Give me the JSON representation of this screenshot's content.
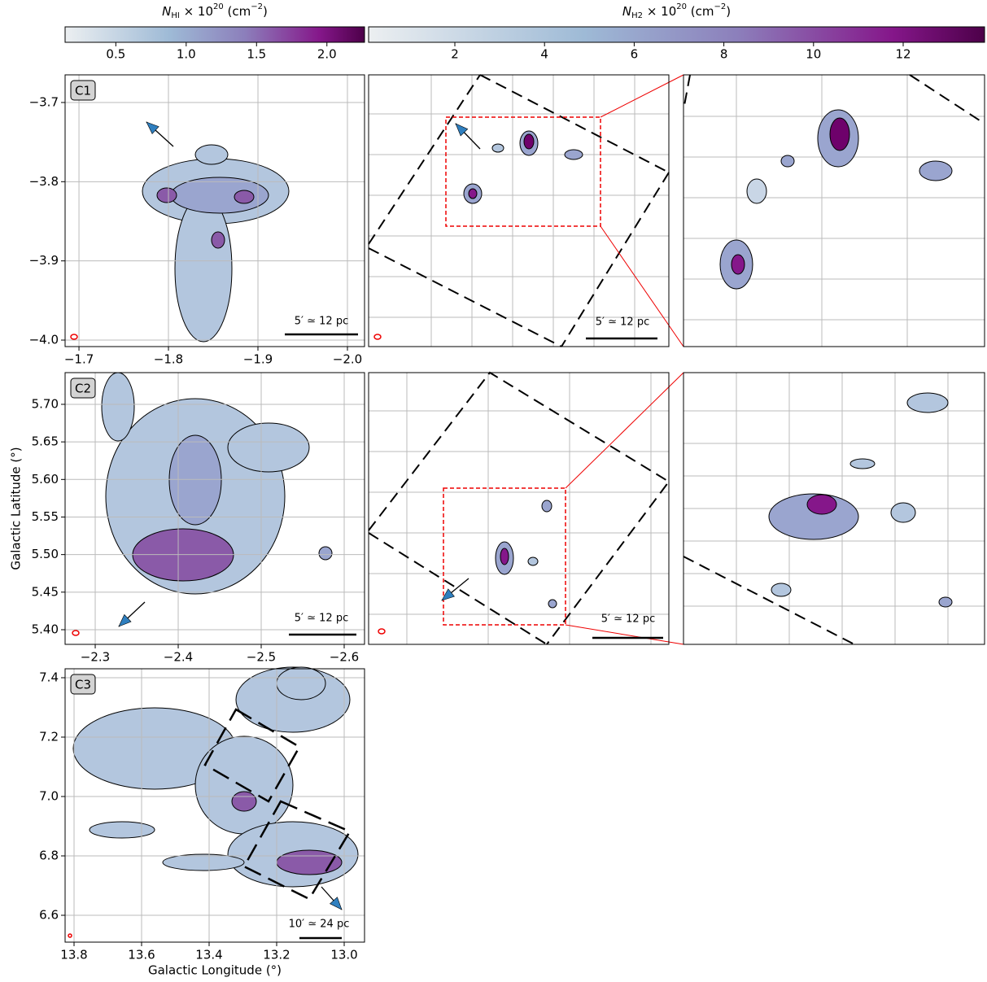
{
  "chart_data": [
    {
      "type": "colorbar",
      "label_parts": [
        "N",
        "HI",
        " × 10",
        "20",
        " (cm",
        "−2",
        ")"
      ],
      "xlim": [
        0.1395,
        2.2674
      ],
      "xticks": [
        0.5,
        {
          "value": 1,
          "label": "1.0"
        },
        1.5,
        {
          "value": 2,
          "label": "2.0"
        }
      ]
    },
    {
      "type": "colorbar",
      "label_parts": [
        "N",
        "H2",
        " × 10",
        "20",
        " (cm",
        "−2",
        ")"
      ],
      "xlim": [
        0.076,
        13.815
      ],
      "xticks": [
        2,
        4,
        6,
        8,
        10,
        12
      ]
    },
    {
      "type": "map",
      "label": "C1",
      "xlim": [
        -1.6845,
        -2.0191
      ],
      "ylim": [
        -4.0082,
        -3.6651
      ],
      "xticks": [
        {
          "value": -1.7,
          "label": "−1.7"
        },
        {
          "value": -1.8,
          "label": "−1.8"
        },
        {
          "value": -1.9,
          "label": "−1.9"
        },
        {
          "value": -2.0,
          "label": "−2.0"
        }
      ],
      "yticks": [
        {
          "value": -3.7,
          "label": "−3.7"
        },
        {
          "value": -3.8,
          "label": "−3.8"
        },
        {
          "value": -3.9,
          "label": "−3.9"
        },
        {
          "value": -4.0,
          "label": "−4.0"
        }
      ],
      "scale": "5′ ≃ 12 pc"
    },
    {
      "type": "map",
      "scale": "5′ ≃ 12 pc"
    },
    {
      "type": "map",
      "label": "C2",
      "ylabel": "Galactic Latitude (°)",
      "xlim": [
        -2.2637,
        -2.6245
      ],
      "ylim": [
        5.3805,
        5.7422
      ],
      "xticks": [
        {
          "value": -2.3,
          "label": "−2.3"
        },
        {
          "value": -2.4,
          "label": "−2.4"
        },
        {
          "value": -2.5,
          "label": "−2.5"
        },
        {
          "value": -2.6,
          "label": "−2.6"
        }
      ],
      "yticks": [
        {
          "value": 5.4,
          "label": "5.40"
        },
        {
          "value": 5.45,
          "label": "5.45"
        },
        {
          "value": 5.5,
          "label": "5.50"
        },
        {
          "value": 5.55,
          "label": "5.55"
        },
        {
          "value": 5.6,
          "label": "5.60"
        },
        {
          "value": 5.65,
          "label": "5.65"
        },
        {
          "value": 5.7,
          "label": "5.70"
        }
      ],
      "scale": "5′ ≃ 12 pc"
    },
    {
      "type": "map",
      "scale": "5′ ≃ 12 pc"
    },
    {
      "type": "map",
      "label": "C3",
      "xlabel": "Galactic Longitude (°)",
      "xlim": [
        13.8265,
        12.9398
      ],
      "ylim": [
        6.5096,
        7.4301
      ],
      "xticks": [
        13.8,
        13.6,
        13.4,
        13.2,
        {
          "value": 13,
          "label": "13.0"
        }
      ],
      "yticks": [
        6.6,
        6.8,
        {
          "value": 7,
          "label": "7.0"
        },
        7.2,
        7.4
      ],
      "scale": "10′ ≃ 24 pc"
    }
  ]
}
